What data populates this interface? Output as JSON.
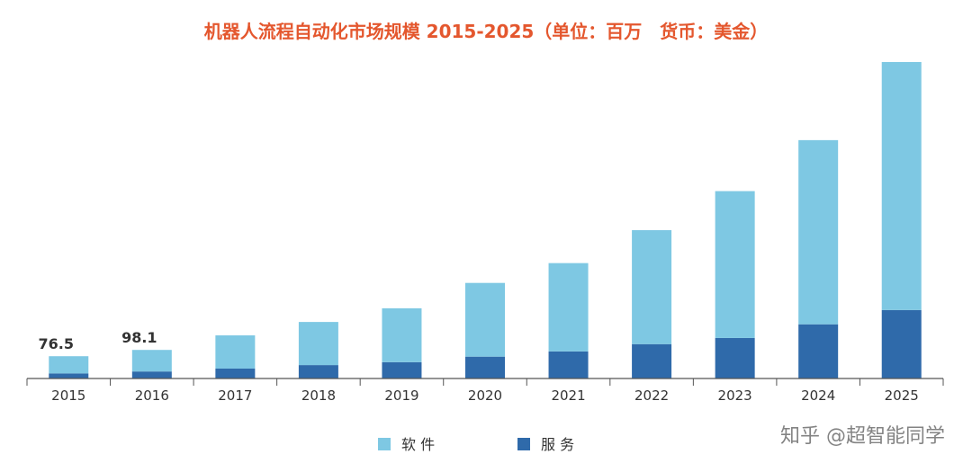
{
  "chart_data": {
    "type": "bar",
    "stacked": true,
    "title": "机器人流程自动化市场规模 2015-2025（单位：百万　货币：美金）",
    "categories": [
      "2015",
      "2016",
      "2017",
      "2018",
      "2019",
      "2020",
      "2021",
      "2022",
      "2023",
      "2024",
      "2025"
    ],
    "series": [
      {
        "name": "软件",
        "color": "#7ec8e3",
        "values": [
          59,
          74,
          114,
          148,
          185,
          253,
          303,
          391,
          504,
          632,
          851
        ]
      },
      {
        "name": "服务",
        "color": "#2f6aaa",
        "values": [
          17.5,
          24.1,
          34,
          46,
          56,
          75,
          93,
          118,
          139,
          186,
          235
        ]
      }
    ],
    "data_labels": [
      {
        "category": "2015",
        "text": "76.5"
      },
      {
        "category": "2016",
        "text": "98.1"
      }
    ],
    "ylim": [
      0,
      1100
    ],
    "grid": false,
    "legend_position": "bottom-center",
    "title_color": "#e4572e"
  },
  "watermark": "知乎 @超智能同学"
}
